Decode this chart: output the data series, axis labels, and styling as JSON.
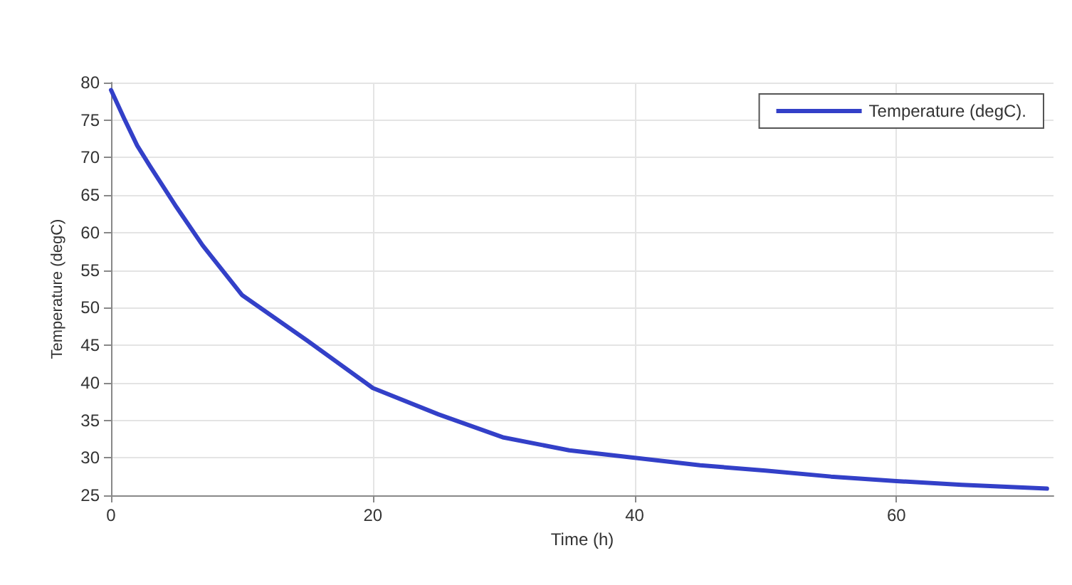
{
  "chart_data": {
    "type": "line",
    "xlabel": "Time (h)",
    "ylabel": "Temperature (degC)",
    "x": [
      0,
      1,
      2,
      3,
      5,
      7,
      10,
      15,
      20,
      25,
      30,
      35,
      40,
      45,
      50,
      55,
      60,
      65,
      71.5
    ],
    "series": [
      {
        "name": "Temperature (degC).",
        "color": "#3340c8",
        "values": [
          79,
          75.2,
          71.6,
          68.8,
          63.4,
          58.3,
          51.7,
          45.6,
          39.3,
          35.8,
          32.7,
          31,
          30,
          29,
          28.3,
          27.5,
          26.9,
          26.4,
          25.9
        ]
      }
    ],
    "xlim": [
      0,
      72
    ],
    "xticks": [
      0,
      20,
      40,
      60
    ],
    "ylim": [
      25,
      80
    ],
    "yticks": [
      25,
      30,
      35,
      40,
      45,
      50,
      55,
      60,
      65,
      70,
      75,
      80
    ],
    "grid": true,
    "legend": "top right",
    "marker": "none",
    "line_style": "solid"
  }
}
